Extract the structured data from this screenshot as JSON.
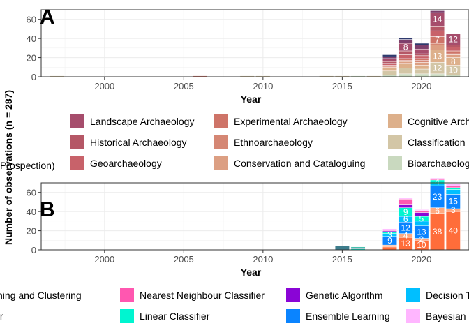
{
  "shared_ylabel": "Number of observations (n = 287)",
  "chart_data": [
    {
      "panel": "A",
      "type": "bar",
      "stacked": true,
      "xlabel": "Year",
      "xticks": [
        2000,
        2005,
        2010,
        2015,
        2020
      ],
      "xlim": [
        1996,
        2023
      ],
      "ylim": [
        0,
        70
      ],
      "yticks": [
        0,
        20,
        40,
        60
      ],
      "grid": true,
      "x": [
        1997,
        2006,
        2009,
        2010,
        2014,
        2015,
        2016,
        2017,
        2018,
        2019,
        2020,
        2021,
        2022
      ],
      "series": [
        {
          "name": "Bioarchaeology",
          "color": "#c9d9bf",
          "values": [
            0,
            0,
            0,
            0,
            0,
            0,
            1,
            0,
            2,
            3,
            3,
            3,
            2
          ]
        },
        {
          "name": "Classification",
          "color": "#d3c6a6",
          "values": [
            1,
            0,
            1,
            1,
            1,
            1,
            0,
            1,
            4,
            6,
            5,
            12,
            10
          ]
        },
        {
          "name": "Cognitive Archaeology",
          "color": "#ddb08b",
          "values": [
            0,
            0,
            0,
            0,
            0,
            0,
            0,
            0,
            3,
            5,
            4,
            13,
            8
          ]
        },
        {
          "name": "Conservation and Cataloguing",
          "color": "#dc9f83",
          "values": [
            0,
            0,
            0,
            0,
            0,
            0,
            0,
            0,
            1,
            2,
            3,
            5,
            3
          ]
        },
        {
          "name": "Ethnoarchaeology",
          "color": "#d58774",
          "values": [
            0,
            0,
            0,
            0,
            0,
            0,
            0,
            0,
            1,
            1,
            2,
            2,
            1
          ]
        },
        {
          "name": "Experimental Archaeology",
          "color": "#ce7468",
          "values": [
            0,
            1,
            0,
            0,
            0,
            0,
            0,
            0,
            1,
            2,
            2,
            7,
            3
          ]
        },
        {
          "name": "Geoarchaeology",
          "color": "#c8626a",
          "values": [
            0,
            0,
            0,
            0,
            0,
            0,
            0,
            0,
            2,
            4,
            3,
            6,
            4
          ]
        },
        {
          "name": "Historical Archaeology",
          "color": "#b55766",
          "values": [
            0,
            0,
            0,
            0,
            0,
            0,
            0,
            0,
            2,
            4,
            2,
            5,
            2
          ]
        },
        {
          "name": "Landscape Archaeology",
          "color": "#a64d6c",
          "values": [
            0,
            0,
            0,
            0,
            0,
            0,
            0,
            0,
            3,
            8,
            5,
            14,
            12
          ]
        },
        {
          "name": "",
          "color": "#7d3f6b",
          "values": [
            0,
            0,
            0,
            0,
            0,
            0,
            0,
            0,
            2,
            4,
            4,
            2,
            0
          ]
        },
        {
          "name": "",
          "color": "#2f3a6e",
          "values": [
            0,
            0,
            0,
            0,
            0,
            0,
            0,
            0,
            2,
            2,
            2,
            1,
            0
          ]
        }
      ],
      "labels": [
        {
          "x": 2019,
          "series": 8,
          "text": "8"
        },
        {
          "x": 2021,
          "series": 8,
          "text": "14"
        },
        {
          "x": 2022,
          "series": 8,
          "text": "12"
        },
        {
          "x": 2021,
          "series": 2,
          "text": "13"
        },
        {
          "x": 2021,
          "series": 1,
          "text": "12"
        },
        {
          "x": 2022,
          "series": 1,
          "text": "10"
        },
        {
          "x": 2021,
          "series": 5,
          "text": "7"
        },
        {
          "x": 2022,
          "series": 2,
          "text": "8"
        }
      ],
      "legend": {
        "columns": [
          [
            "Landscape Archaeology",
            "Historical Archaeology",
            "Geoarchaeology"
          ],
          [
            "Experimental Archaeology",
            "Ethnoarchaeology",
            "Conservation and Cataloguing"
          ],
          [
            "Cognitive Archaeology",
            "Classification",
            "Bioarchaeology"
          ]
        ],
        "partial_left_entry": "Prospection)"
      }
    },
    {
      "panel": "B",
      "type": "bar",
      "stacked": true,
      "xlabel": "Year",
      "xticks": [
        2000,
        2005,
        2010,
        2015,
        2020
      ],
      "xlim": [
        1996,
        2023
      ],
      "ylim": [
        0,
        70
      ],
      "yticks": [
        0,
        20,
        40,
        60
      ],
      "grid": true,
      "x": [
        2015,
        2016,
        2018,
        2019,
        2020,
        2021,
        2022
      ],
      "series": [
        {
          "name": "Deep Learning",
          "color": "#ff6d3a",
          "values": [
            0,
            0,
            3,
            13,
            10,
            38,
            40
          ]
        },
        {
          "name": "Bayesian",
          "color": "#ffaa80",
          "values": [
            0,
            0,
            2,
            4,
            2,
            6,
            3
          ]
        },
        {
          "name": "Ensemble Learning",
          "color": "#0a84ff",
          "values": [
            0,
            0,
            9,
            12,
            13,
            23,
            15
          ]
        },
        {
          "name": "Decision Tree",
          "color": "#00bfff",
          "values": [
            0,
            0,
            3,
            6,
            5,
            2,
            5
          ]
        },
        {
          "name": "Linear Classifier",
          "color": "#00f5d0",
          "values": [
            0,
            1,
            2,
            9,
            5,
            4,
            2
          ]
        },
        {
          "name": "Genetic Algorithm",
          "color": "#8a05d6",
          "values": [
            0,
            0,
            1,
            3,
            4,
            0,
            0
          ]
        },
        {
          "name": "Nearest Neighbour Classifier",
          "color": "#ff57b0",
          "values": [
            0,
            0,
            1,
            6,
            2,
            1,
            2
          ]
        },
        {
          "name": "Bayesian Network",
          "color": "#ffb6ff",
          "values": [
            0,
            0,
            1,
            1,
            1,
            1,
            2
          ]
        },
        {
          "name": "",
          "color": "#3d7d8c",
          "values": [
            4,
            1,
            0,
            0,
            0,
            0,
            0
          ]
        },
        {
          "name": "",
          "color": "#2ab5a2",
          "values": [
            0,
            1,
            0,
            0,
            0,
            0,
            0
          ]
        }
      ],
      "labels": [
        {
          "x": 2021,
          "series": 0,
          "text": "38"
        },
        {
          "x": 2022,
          "series": 0,
          "text": "40"
        },
        {
          "x": 2019,
          "series": 0,
          "text": "13"
        },
        {
          "x": 2020,
          "series": 0,
          "text": "10"
        },
        {
          "x": 2021,
          "series": 2,
          "text": "23"
        },
        {
          "x": 2019,
          "series": 2,
          "text": "12"
        },
        {
          "x": 2020,
          "series": 2,
          "text": "13"
        },
        {
          "x": 2022,
          "series": 2,
          "text": "15"
        },
        {
          "x": 2019,
          "series": 4,
          "text": "9"
        },
        {
          "x": 2018,
          "series": 2,
          "text": "9"
        },
        {
          "x": 2020,
          "series": 4,
          "text": "5"
        },
        {
          "x": 2019,
          "series": 3,
          "text": "6"
        },
        {
          "x": 2021,
          "series": 1,
          "text": "6"
        },
        {
          "x": 2021,
          "series": 4,
          "text": "4"
        },
        {
          "x": 2019,
          "series": 1,
          "text": "4"
        },
        {
          "x": 2018,
          "series": 3,
          "text": "3"
        },
        {
          "x": 2020,
          "series": 1,
          "text": "2"
        },
        {
          "x": 2022,
          "series": 1,
          "text": "3"
        }
      ],
      "legend": {
        "columns": [
          [
            "Learning and Clustering",
            "ssifier"
          ],
          [
            "Nearest Neighbour Classifier",
            "Linear Classifier"
          ],
          [
            "Genetic Algorithm",
            "Ensemble Learning"
          ],
          [
            "Decision Tree",
            "Bayesian Network"
          ]
        ]
      }
    }
  ]
}
